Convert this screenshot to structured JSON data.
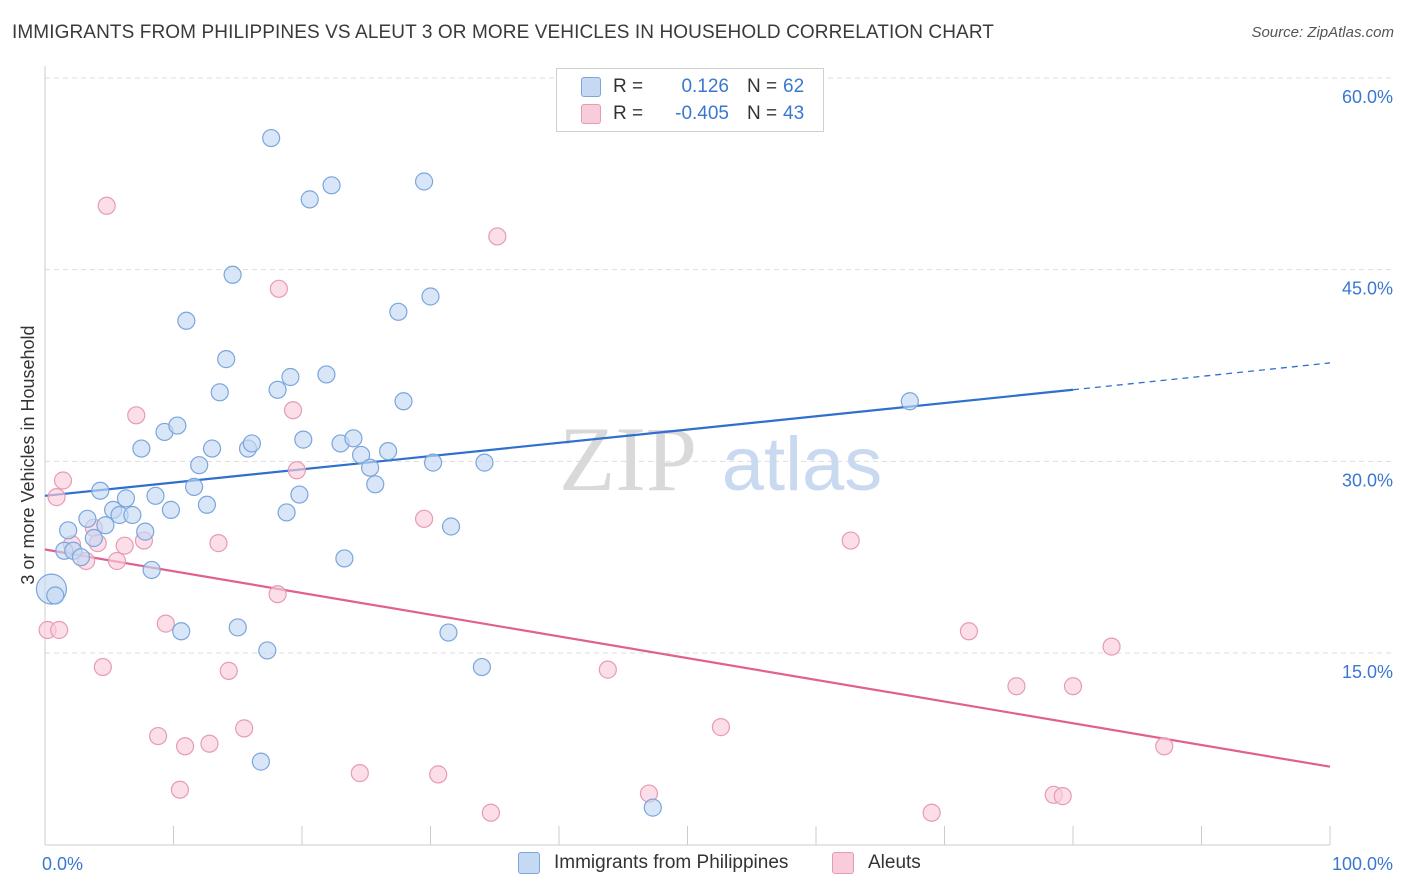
{
  "title": "IMMIGRANTS FROM PHILIPPINES VS ALEUT 3 OR MORE VEHICLES IN HOUSEHOLD CORRELATION CHART",
  "source": "Source: ZipAtlas.com",
  "watermark": {
    "zip": "ZIP",
    "atlas": "atlas"
  },
  "legend": {
    "r_label": "R =",
    "n_label": "N =",
    "rows": [
      {
        "r": "0.126",
        "n": "62"
      },
      {
        "r": "-0.405",
        "n": "43"
      }
    ]
  },
  "colors": {
    "blue_fill": "#c5d9f3",
    "blue_stroke": "#7aa6dc",
    "blue_line": "#2f6fce",
    "blue_text": "#3a78d0",
    "pink_fill": "#f9ccdb",
    "pink_stroke": "#e69bb5",
    "pink_line": "#e0608f",
    "grid": "#dddddd"
  },
  "chart_data": {
    "type": "scatter",
    "title": "IMMIGRANTS FROM PHILIPPINES VS ALEUT 3 OR MORE VEHICLES IN HOUSEHOLD CORRELATION CHART",
    "xlabel": "",
    "ylabel": "3 or more Vehicles in Household",
    "xlim": [
      0,
      100
    ],
    "ylim": [
      0,
      62
    ],
    "x_tick_labels": [
      "0.0%",
      "100.0%"
    ],
    "y_ticks": [
      15,
      30,
      45,
      60
    ],
    "y_tick_labels": [
      "15.0%",
      "30.0%",
      "45.0%",
      "60.0%"
    ],
    "series": [
      {
        "name": "Immigrants from Philippines",
        "color": "#7aa6dc",
        "trend": {
          "x0": 0,
          "y0": 27.3,
          "x1": 80,
          "y1": 35.6,
          "dashed_to_x": 100,
          "dashed_to_y": 37.7
        },
        "points": [
          [
            0.5,
            20.0
          ],
          [
            0.8,
            19.5
          ],
          [
            1.5,
            23.0
          ],
          [
            1.8,
            24.6
          ],
          [
            2.2,
            23.0
          ],
          [
            2.8,
            22.5
          ],
          [
            3.3,
            25.5
          ],
          [
            3.8,
            24.0
          ],
          [
            4.3,
            27.7
          ],
          [
            4.7,
            25.0
          ],
          [
            5.3,
            26.2
          ],
          [
            5.8,
            25.8
          ],
          [
            6.3,
            27.1
          ],
          [
            6.8,
            25.8
          ],
          [
            7.5,
            31.0
          ],
          [
            7.8,
            24.5
          ],
          [
            8.3,
            21.5
          ],
          [
            8.6,
            27.3
          ],
          [
            9.3,
            32.3
          ],
          [
            9.8,
            26.2
          ],
          [
            10.3,
            32.8
          ],
          [
            10.6,
            16.7
          ],
          [
            11.0,
            41.0
          ],
          [
            11.6,
            28.0
          ],
          [
            12.0,
            29.7
          ],
          [
            12.6,
            26.6
          ],
          [
            13.0,
            31.0
          ],
          [
            13.6,
            35.4
          ],
          [
            14.1,
            38.0
          ],
          [
            14.6,
            44.6
          ],
          [
            15.0,
            17.0
          ],
          [
            15.8,
            31.0
          ],
          [
            16.1,
            31.4
          ],
          [
            17.3,
            15.2
          ],
          [
            17.6,
            55.3
          ],
          [
            18.1,
            35.6
          ],
          [
            18.8,
            26.0
          ],
          [
            19.1,
            36.6
          ],
          [
            19.8,
            27.4
          ],
          [
            20.1,
            31.7
          ],
          [
            20.6,
            50.5
          ],
          [
            21.9,
            36.8
          ],
          [
            22.3,
            51.6
          ],
          [
            23.0,
            31.4
          ],
          [
            23.3,
            22.4
          ],
          [
            24.0,
            31.8
          ],
          [
            24.6,
            30.5
          ],
          [
            25.3,
            29.5
          ],
          [
            25.7,
            28.2
          ],
          [
            26.7,
            30.8
          ],
          [
            27.5,
            41.7
          ],
          [
            27.9,
            34.7
          ],
          [
            29.5,
            51.9
          ],
          [
            30.0,
            42.9
          ],
          [
            30.2,
            29.9
          ],
          [
            31.4,
            16.6
          ],
          [
            31.6,
            24.9
          ],
          [
            34.0,
            13.9
          ],
          [
            34.2,
            29.9
          ],
          [
            47.3,
            2.9
          ],
          [
            67.3,
            34.7
          ],
          [
            16.8,
            6.5
          ]
        ]
      },
      {
        "name": "Aleuts",
        "color": "#e69bb5",
        "trend": {
          "x0": 0,
          "y0": 23.1,
          "x1": 100,
          "y1": 6.1
        },
        "points": [
          [
            0.2,
            16.8
          ],
          [
            0.9,
            27.2
          ],
          [
            1.4,
            28.5
          ],
          [
            2.1,
            23.5
          ],
          [
            3.2,
            22.2
          ],
          [
            3.8,
            24.8
          ],
          [
            4.1,
            23.6
          ],
          [
            4.5,
            13.9
          ],
          [
            4.8,
            50.0
          ],
          [
            5.6,
            22.2
          ],
          [
            6.2,
            23.4
          ],
          [
            7.1,
            33.6
          ],
          [
            7.7,
            23.8
          ],
          [
            8.8,
            8.5
          ],
          [
            9.4,
            17.3
          ],
          [
            10.5,
            4.3
          ],
          [
            10.9,
            7.7
          ],
          [
            12.8,
            7.9
          ],
          [
            13.5,
            23.6
          ],
          [
            14.3,
            13.6
          ],
          [
            15.5,
            9.1
          ],
          [
            18.2,
            43.5
          ],
          [
            18.1,
            19.6
          ],
          [
            19.3,
            34.0
          ],
          [
            19.6,
            29.3
          ],
          [
            24.5,
            5.6
          ],
          [
            29.5,
            25.5
          ],
          [
            30.6,
            5.5
          ],
          [
            34.7,
            2.5
          ],
          [
            35.2,
            47.6
          ],
          [
            43.8,
            13.7
          ],
          [
            47.0,
            4.0
          ],
          [
            52.6,
            9.2
          ],
          [
            62.7,
            23.8
          ],
          [
            69.0,
            2.5
          ],
          [
            71.9,
            16.7
          ],
          [
            75.6,
            12.4
          ],
          [
            78.5,
            3.9
          ],
          [
            79.2,
            3.8
          ],
          [
            80.0,
            12.4
          ],
          [
            83.0,
            15.5
          ],
          [
            87.1,
            7.7
          ],
          [
            1.1,
            16.8
          ]
        ]
      }
    ]
  },
  "bottom_legend": [
    {
      "label": "Immigrants from Philippines"
    },
    {
      "label": "Aleuts"
    }
  ]
}
